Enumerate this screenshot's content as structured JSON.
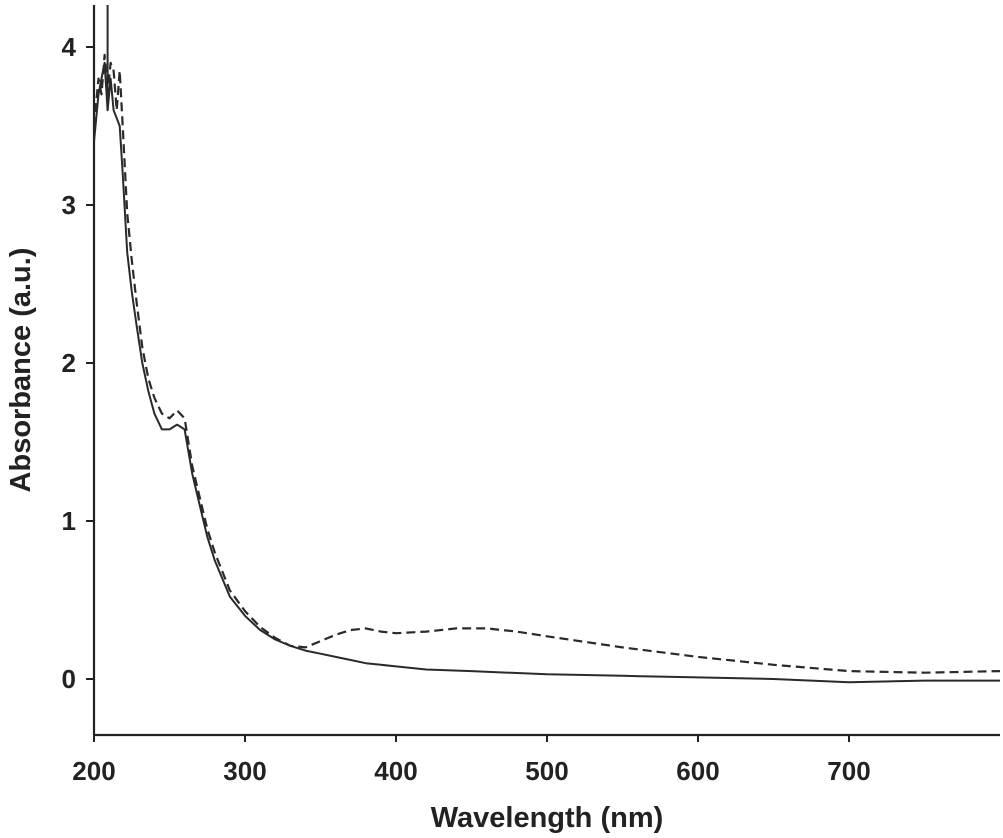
{
  "chart_data": {
    "type": "line",
    "xlabel": "Wavelength (nm)",
    "ylabel": "Absorbance (a.u.)",
    "xlim": [
      200,
      800
    ],
    "ylim": [
      -0.35,
      4.3
    ],
    "xticks": [
      200,
      300,
      400,
      500,
      600,
      700
    ],
    "yticks": [
      0,
      1,
      2,
      3,
      4
    ],
    "grid": false,
    "legend": "none",
    "series": [
      {
        "style": "solid",
        "x": [
          200,
          203,
          205,
          207,
          209,
          211,
          213,
          215,
          217,
          219,
          222,
          225,
          228,
          232,
          236,
          240,
          245,
          250,
          255,
          260,
          265,
          270,
          275,
          280,
          290,
          300,
          310,
          320,
          330,
          340,
          350,
          360,
          370,
          380,
          390,
          400,
          420,
          450,
          500,
          550,
          600,
          650,
          700,
          750,
          800
        ],
        "y": [
          3.4,
          3.7,
          3.8,
          3.9,
          3.6,
          3.8,
          3.6,
          3.55,
          3.5,
          3.2,
          2.7,
          2.45,
          2.25,
          2.0,
          1.82,
          1.68,
          1.58,
          1.58,
          1.61,
          1.58,
          1.3,
          1.1,
          0.9,
          0.75,
          0.52,
          0.4,
          0.31,
          0.25,
          0.21,
          0.18,
          0.16,
          0.14,
          0.12,
          0.1,
          0.09,
          0.08,
          0.06,
          0.05,
          0.03,
          0.02,
          0.01,
          0.0,
          -0.02,
          -0.01,
          -0.01
        ]
      },
      {
        "style": "dashed",
        "x": [
          200,
          203,
          205,
          207,
          209,
          211,
          213,
          215,
          217,
          219,
          222,
          225,
          228,
          232,
          236,
          240,
          245,
          250,
          255,
          260,
          265,
          270,
          275,
          280,
          290,
          300,
          310,
          320,
          330,
          340,
          350,
          360,
          370,
          380,
          390,
          400,
          420,
          440,
          460,
          480,
          500,
          550,
          600,
          650,
          700,
          750,
          800
        ],
        "y": [
          3.5,
          3.8,
          3.7,
          3.95,
          3.7,
          3.9,
          3.85,
          3.6,
          3.85,
          3.5,
          2.95,
          2.65,
          2.4,
          2.1,
          1.9,
          1.78,
          1.68,
          1.65,
          1.7,
          1.65,
          1.35,
          1.15,
          0.95,
          0.8,
          0.56,
          0.43,
          0.33,
          0.26,
          0.21,
          0.2,
          0.24,
          0.28,
          0.31,
          0.32,
          0.3,
          0.29,
          0.3,
          0.32,
          0.32,
          0.3,
          0.27,
          0.2,
          0.14,
          0.09,
          0.05,
          0.04,
          0.05
        ]
      }
    ]
  }
}
